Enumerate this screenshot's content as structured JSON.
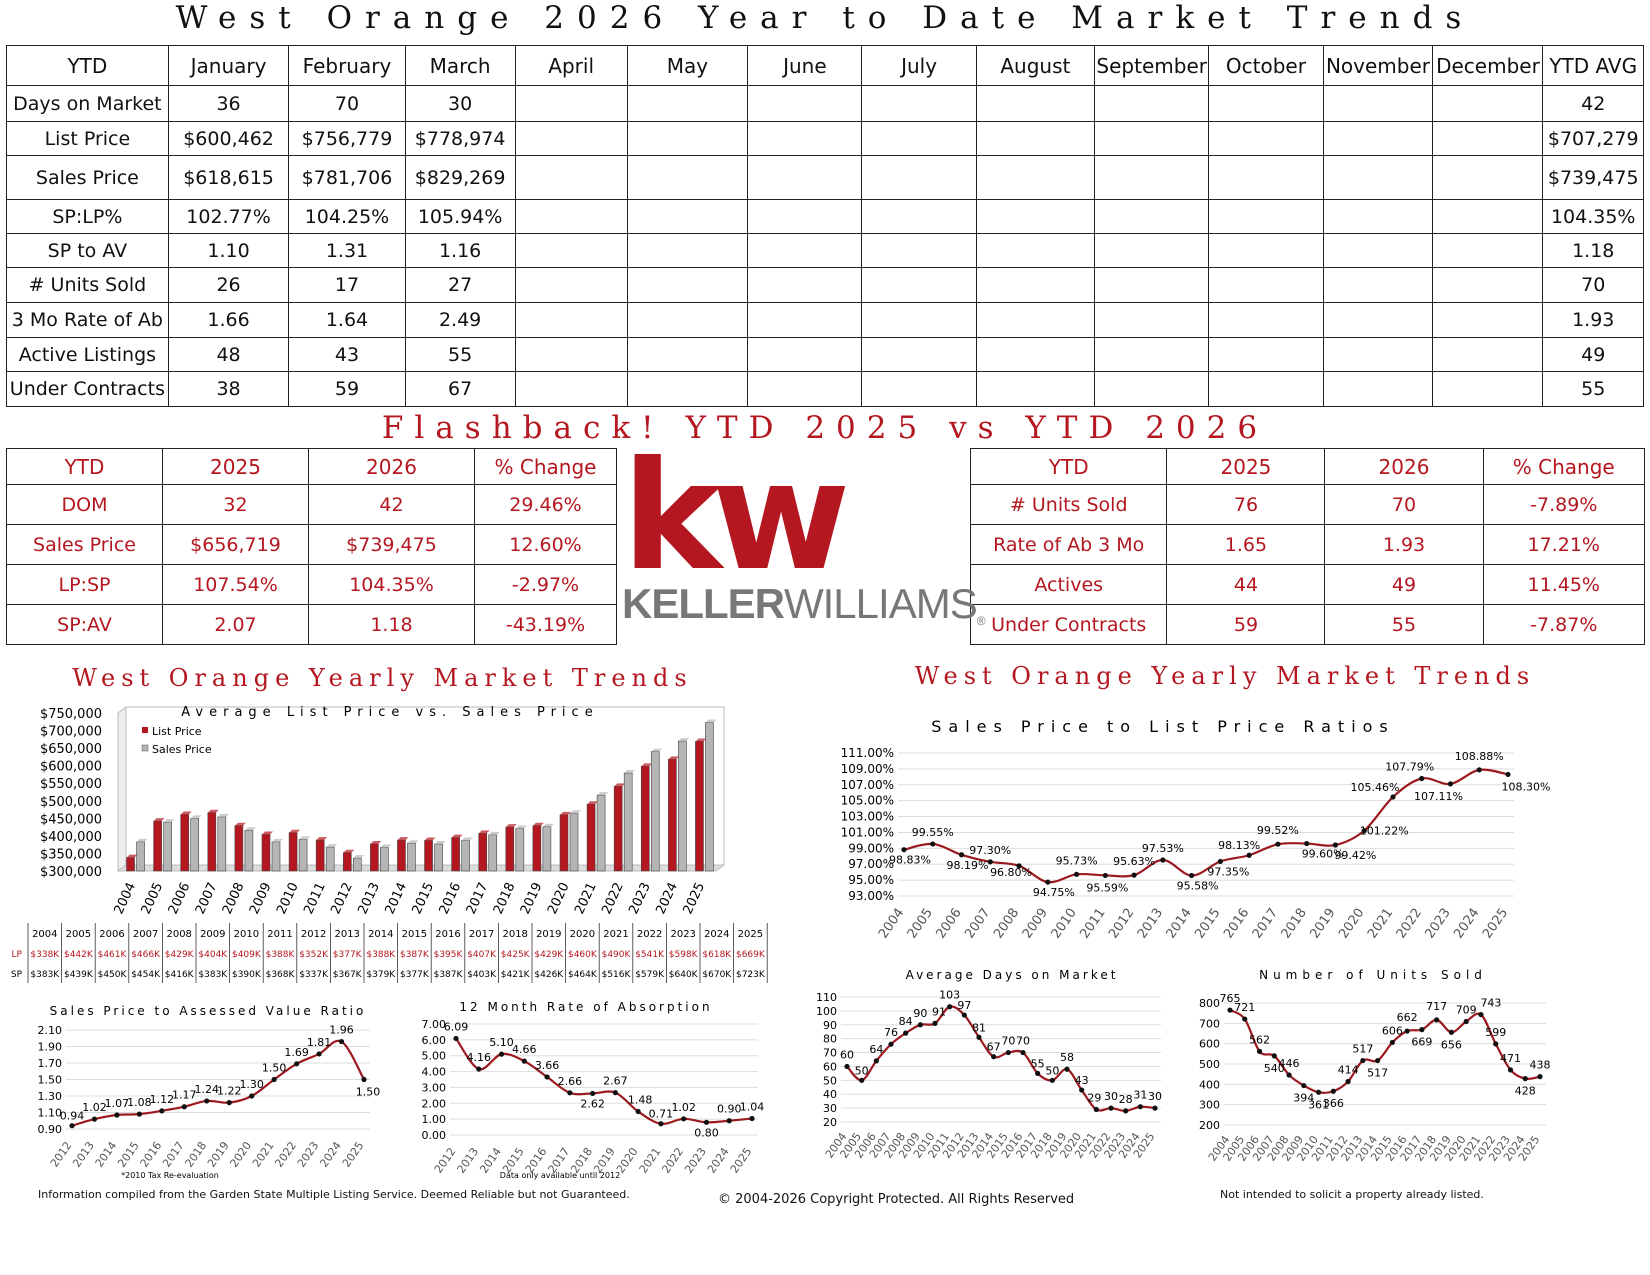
{
  "page_title": "West Orange 2026 Year to Date Market Trends",
  "ytd": {
    "headers": [
      "YTD",
      "January",
      "February",
      "March",
      "April",
      "May",
      "June",
      "July",
      "August",
      "September",
      "October",
      "November",
      "December",
      "YTD AVG"
    ],
    "rows": [
      [
        "Days on Market",
        "36",
        "70",
        "30",
        "",
        "",
        "",
        "",
        "",
        "",
        "",
        "",
        "",
        "42"
      ],
      [
        "List Price",
        "$600,462",
        "$756,779",
        "$778,974",
        "",
        "",
        "",
        "",
        "",
        "",
        "",
        "",
        "",
        "$707,279"
      ],
      [
        "Sales Price",
        "$618,615",
        "$781,706",
        "$829,269",
        "",
        "",
        "",
        "",
        "",
        "",
        "",
        "",
        "",
        "$739,475"
      ],
      [
        "SP:LP%",
        "102.77%",
        "104.25%",
        "105.94%",
        "",
        "",
        "",
        "",
        "",
        "",
        "",
        "",
        "",
        "104.35%"
      ],
      [
        "SP to AV",
        "1.10",
        "1.31",
        "1.16",
        "",
        "",
        "",
        "",
        "",
        "",
        "",
        "",
        "",
        "1.18"
      ],
      [
        "# Units Sold",
        "26",
        "17",
        "27",
        "",
        "",
        "",
        "",
        "",
        "",
        "",
        "",
        "",
        "70"
      ],
      [
        "3 Mo Rate of Ab",
        "1.66",
        "1.64",
        "2.49",
        "",
        "",
        "",
        "",
        "",
        "",
        "",
        "",
        "",
        "1.93"
      ],
      [
        "Active Listings",
        "48",
        "43",
        "55",
        "",
        "",
        "",
        "",
        "",
        "",
        "",
        "",
        "",
        "49"
      ],
      [
        "Under Contracts",
        "38",
        "59",
        "67",
        "",
        "",
        "",
        "",
        "",
        "",
        "",
        "",
        "",
        "55"
      ]
    ]
  },
  "flashback_title": "Flashback! YTD 2025 vs YTD 2026",
  "flash_left": {
    "headers": [
      "YTD",
      "2025",
      "2026",
      "% Change"
    ],
    "rows": [
      [
        "DOM",
        "32",
        "42",
        "29.46%"
      ],
      [
        "Sales Price",
        "$656,719",
        "$739,475",
        "12.60%"
      ],
      [
        "LP:SP",
        "107.54%",
        "104.35%",
        "-2.97%"
      ],
      [
        "SP:AV",
        "2.07",
        "1.18",
        "-43.19%"
      ]
    ]
  },
  "flash_right": {
    "headers": [
      "YTD",
      "2025",
      "2026",
      "% Change"
    ],
    "rows": [
      [
        "# Units Sold",
        "76",
        "70",
        "-7.89%"
      ],
      [
        "Rate of Ab 3 Mo",
        "1.65",
        "1.93",
        "17.21%"
      ],
      [
        "Actives",
        "44",
        "49",
        "11.45%"
      ],
      [
        "Under Contracts",
        "59",
        "55",
        "-7.87%"
      ]
    ]
  },
  "logo": {
    "mark": "kw",
    "keller": "KELLER",
    "williams": "WILLIAMS",
    "reg": "®"
  },
  "colors": {
    "accent": "#b4171f",
    "gray_bar": "#b5b5b5"
  },
  "section_titles": {
    "left": "West Orange Yearly Market Trends",
    "right": "West Orange Yearly Market Trends"
  },
  "chart_data": [
    {
      "id": "lp_vs_sp",
      "type": "bar",
      "title": "Average List Price vs. Sales Price",
      "categories": [
        "2004",
        "2005",
        "2006",
        "2007",
        "2008",
        "2009",
        "2010",
        "2011",
        "2012",
        "2013",
        "2014",
        "2015",
        "2016",
        "2017",
        "2018",
        "2019",
        "2020",
        "2021",
        "2022",
        "2023",
        "2024",
        "2025"
      ],
      "series": [
        {
          "name": "List Price",
          "values": [
            338,
            442,
            461,
            466,
            429,
            404,
            409,
            388,
            352,
            377,
            388,
            387,
            395,
            407,
            425,
            429,
            460,
            490,
            541,
            598,
            618,
            669
          ]
        },
        {
          "name": "Sales Price",
          "values": [
            383,
            439,
            450,
            454,
            416,
            383,
            390,
            368,
            337,
            367,
            379,
            377,
            387,
            403,
            421,
            426,
            464,
            516,
            579,
            640,
            670,
            723
          ]
        }
      ],
      "yticks": [
        "$750,000",
        "$700,000",
        "$650,000",
        "$600,000",
        "$550,000",
        "$500,000",
        "$450,000",
        "$400,000",
        "$350,000",
        "$300,000"
      ],
      "ylim": [
        300,
        750
      ],
      "legend_position": "top-left",
      "table": {
        "row_labels": [
          "LP",
          "SP"
        ],
        "lp": [
          "$338K",
          "$442K",
          "$461K",
          "$466K",
          "$429K",
          "$404K",
          "$409K",
          "$388K",
          "$352K",
          "$377K",
          "$388K",
          "$387K",
          "$395K",
          "$407K",
          "$425K",
          "$429K",
          "$460K",
          "$490K",
          "$541K",
          "$598K",
          "$618K",
          "$669K"
        ],
        "sp": [
          "$383K",
          "$439K",
          "$450K",
          "$454K",
          "$416K",
          "$383K",
          "$390K",
          "$368K",
          "$337K",
          "$367K",
          "$379K",
          "$377K",
          "$387K",
          "$403K",
          "$421K",
          "$426K",
          "$464K",
          "$516K",
          "$579K",
          "$640K",
          "$670K",
          "$723K"
        ]
      }
    },
    {
      "id": "sp_lp_ratio",
      "type": "line",
      "title": "Sales Price to List Price Ratios",
      "x": [
        "2004",
        "2005",
        "2006",
        "2007",
        "2008",
        "2009",
        "2010",
        "2011",
        "2012",
        "2013",
        "2014",
        "2015",
        "2016",
        "2017",
        "2018",
        "2019",
        "2020",
        "2021",
        "2022",
        "2023",
        "2024",
        "2025"
      ],
      "values": [
        98.83,
        99.55,
        98.19,
        97.3,
        96.8,
        94.75,
        95.73,
        95.59,
        95.63,
        97.53,
        95.58,
        97.35,
        98.13,
        99.52,
        99.6,
        99.42,
        101.22,
        105.46,
        107.79,
        107.11,
        108.88,
        108.3
      ],
      "labels": [
        "98.83%",
        "99.55%",
        "98.19%",
        "97.30%",
        "96.80%",
        "94.75%",
        "95.73%",
        "95.59%",
        "95.63%",
        "97.53%",
        "95.58%",
        "97.35%",
        "98.13%",
        "99.52%",
        "99.60%",
        "99.42%",
        "101.22%",
        "105.46%",
        "107.79%",
        "107.11%",
        "108.88%",
        "108.30%"
      ],
      "yticks": [
        "111.00%",
        "109.00%",
        "107.00%",
        "105.00%",
        "103.00%",
        "101.00%",
        "99.00%",
        "97.00%",
        "95.00%",
        "93.00%"
      ],
      "ylim": [
        93,
        111
      ]
    },
    {
      "id": "sp_av",
      "type": "line",
      "title": "Sales Price to Assessed Value Ratio",
      "x": [
        "2012",
        "2013",
        "2014",
        "2015",
        "2016",
        "2017",
        "2018",
        "2019",
        "2020",
        "2021",
        "2022",
        "2023",
        "2024",
        "2025"
      ],
      "values": [
        0.94,
        1.02,
        1.07,
        1.08,
        1.12,
        1.17,
        1.24,
        1.22,
        1.3,
        1.5,
        1.69,
        1.81,
        1.96,
        1.5
      ],
      "labels": [
        "0.94",
        "1.02",
        "1.07",
        "1.08",
        "1.12",
        "1.17",
        "1.24",
        "1.22",
        "1.30",
        "1.50",
        "1.69",
        "1.81",
        "1.96",
        "1.50"
      ],
      "yticks": [
        "2.10",
        "1.90",
        "1.70",
        "1.50",
        "1.30",
        "1.10",
        "0.90"
      ],
      "ylim": [
        0.9,
        2.1
      ],
      "note": "*2010 Tax Re-evaluation"
    },
    {
      "id": "absorption",
      "type": "line",
      "title": "12 Month Rate of Absorption",
      "x": [
        "2012",
        "2013",
        "2014",
        "2015",
        "2016",
        "2017",
        "2018",
        "2019",
        "2020",
        "2021",
        "2022",
        "2023",
        "2024",
        "2025"
      ],
      "values": [
        6.09,
        4.16,
        5.1,
        4.66,
        3.66,
        2.66,
        2.62,
        2.67,
        1.48,
        0.71,
        1.02,
        0.8,
        0.9,
        1.04
      ],
      "labels": [
        "6.09",
        "4.16",
        "5.10",
        "4.66",
        "3.66",
        "2.66",
        "2.62",
        "2.67",
        "1.48",
        "0.71",
        "1.02",
        "0.80",
        "0.90",
        "1.04"
      ],
      "yticks": [
        "7.00",
        "6.00",
        "5.00",
        "4.00",
        "3.00",
        "2.00",
        "1.00",
        "0.00"
      ],
      "ylim": [
        0,
        7
      ],
      "note": "Data only available until 2012"
    },
    {
      "id": "dom",
      "type": "line",
      "title": "Average Days on Market",
      "x": [
        "2004",
        "2005",
        "2006",
        "2007",
        "2008",
        "2009",
        "2010",
        "2011",
        "2012",
        "2013",
        "2014",
        "2015",
        "2016",
        "2017",
        "2018",
        "2019",
        "2020",
        "2021",
        "2022",
        "2023",
        "2024",
        "2025"
      ],
      "values": [
        60,
        50,
        64,
        76,
        84,
        90,
        91,
        103,
        97,
        81,
        67,
        70,
        70,
        55,
        50,
        58,
        43,
        29,
        30,
        28,
        31,
        30
      ],
      "labels": [
        "60",
        "50",
        "64",
        "76",
        "84",
        "90",
        "91",
        "103",
        "97",
        "81",
        "67",
        "70",
        "70",
        "55",
        "50",
        "58",
        "43",
        "29",
        "30",
        "28",
        "31",
        "30"
      ],
      "yticks": [
        "110",
        "100",
        "90",
        "80",
        "70",
        "60",
        "50",
        "40",
        "30",
        "20"
      ],
      "ylim": [
        20,
        110
      ]
    },
    {
      "id": "units_sold",
      "type": "line",
      "title": "Number of Units Sold",
      "x": [
        "2004",
        "2005",
        "2006",
        "2007",
        "2008",
        "2009",
        "2010",
        "2011",
        "2012",
        "2013",
        "2014",
        "2015",
        "2016",
        "2017",
        "2018",
        "2019",
        "2020",
        "2021",
        "2022",
        "2023",
        "2024",
        "2025"
      ],
      "values": [
        765,
        721,
        562,
        540,
        446,
        394,
        361,
        366,
        414,
        517,
        517,
        606,
        662,
        669,
        717,
        656,
        709,
        743,
        599,
        471,
        428,
        438
      ],
      "labels": [
        "765",
        "721",
        "562",
        "540",
        "446",
        "394",
        "361",
        "366",
        "414",
        "517",
        "517",
        "606",
        "662",
        "669",
        "717",
        "656",
        "709",
        "743",
        "599",
        "471",
        "428",
        "438"
      ],
      "yticks": [
        "800",
        "700",
        "600",
        "500",
        "400",
        "300",
        "200"
      ],
      "ylim": [
        200,
        800
      ]
    }
  ],
  "footer": {
    "left": "Information compiled from the Garden State Multiple Listing Service.  Deemed Reliable but not Guaranteed.",
    "center": "© 2004-2026 Copyright Protected.  All Rights Reserved",
    "right": "Not intended to solicit a property already listed."
  }
}
